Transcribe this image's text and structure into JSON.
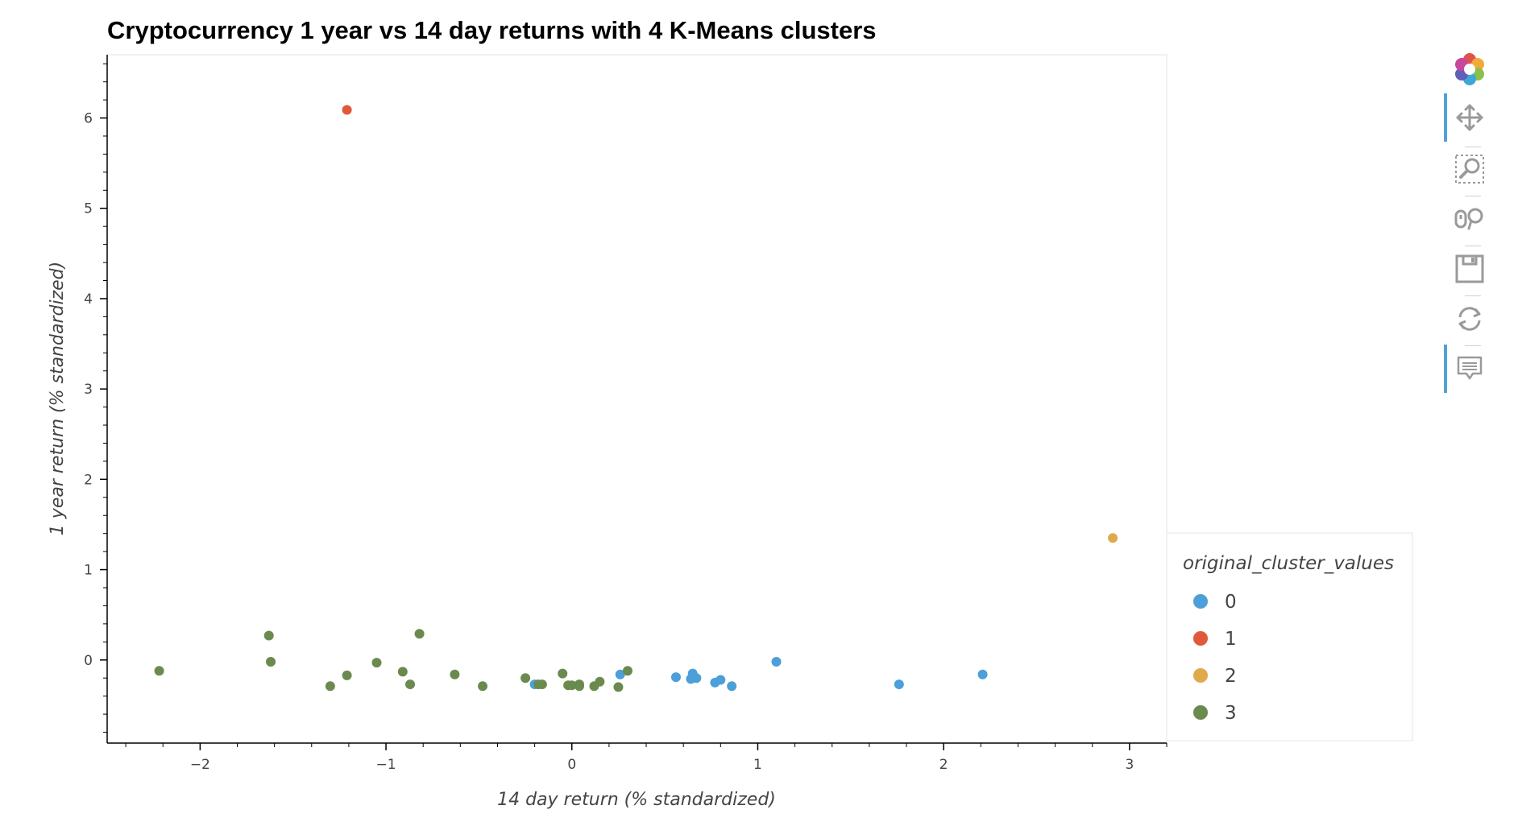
{
  "chart_data": {
    "type": "scatter",
    "title": "Cryptocurrency 1 year vs 14 day returns with 4 K-Means clusters",
    "xlabel": "14 day return (% standardized)",
    "ylabel": "1 year return (% standardized)",
    "xlim": [
      -2.5,
      3.2
    ],
    "ylim": [
      -0.92,
      6.7
    ],
    "x_ticks": [
      -2,
      -1,
      0,
      1,
      2,
      3
    ],
    "x_tick_labels": [
      "−2",
      "−1",
      "0",
      "1",
      "2",
      "3"
    ],
    "y_ticks": [
      0,
      1,
      2,
      3,
      4,
      5,
      6
    ],
    "y_tick_labels": [
      "0",
      "1",
      "2",
      "3",
      "4",
      "5",
      "6"
    ],
    "grid": false,
    "legend": {
      "title": "original_cluster_values",
      "placement": "right"
    },
    "series": [
      {
        "name": "0",
        "color": "#4c9fd8",
        "points": [
          [
            -0.2,
            -0.27
          ],
          [
            0.26,
            -0.16
          ],
          [
            0.56,
            -0.19
          ],
          [
            0.64,
            -0.21
          ],
          [
            0.65,
            -0.15
          ],
          [
            0.67,
            -0.2
          ],
          [
            0.77,
            -0.25
          ],
          [
            0.8,
            -0.22
          ],
          [
            0.86,
            -0.29
          ],
          [
            1.1,
            -0.02
          ],
          [
            1.76,
            -0.27
          ],
          [
            2.21,
            -0.16
          ]
        ]
      },
      {
        "name": "1",
        "color": "#e05a3a",
        "points": [
          [
            -1.21,
            6.09
          ]
        ]
      },
      {
        "name": "2",
        "color": "#e0a94b",
        "points": [
          [
            2.91,
            1.35
          ]
        ]
      },
      {
        "name": "3",
        "color": "#6b8a4e",
        "points": [
          [
            -2.22,
            -0.12
          ],
          [
            -1.63,
            0.27
          ],
          [
            -1.62,
            -0.02
          ],
          [
            -1.3,
            -0.29
          ],
          [
            -1.21,
            -0.17
          ],
          [
            -1.05,
            -0.03
          ],
          [
            -0.91,
            -0.13
          ],
          [
            -0.87,
            -0.27
          ],
          [
            -0.82,
            0.29
          ],
          [
            -0.63,
            -0.16
          ],
          [
            -0.48,
            -0.29
          ],
          [
            -0.25,
            -0.2
          ],
          [
            -0.18,
            -0.27
          ],
          [
            -0.16,
            -0.27
          ],
          [
            -0.05,
            -0.15
          ],
          [
            -0.02,
            -0.28
          ],
          [
            0.0,
            -0.28
          ],
          [
            0.04,
            -0.27
          ],
          [
            0.04,
            -0.29
          ],
          [
            0.12,
            -0.29
          ],
          [
            0.15,
            -0.24
          ],
          [
            0.25,
            -0.3
          ],
          [
            0.3,
            -0.12
          ]
        ]
      }
    ]
  },
  "toolbar": {
    "tools": [
      {
        "icon": "bokeh-logo-icon"
      },
      {
        "icon": "pan-icon"
      },
      {
        "icon": "box-zoom-icon"
      },
      {
        "icon": "wheel-zoom-icon"
      },
      {
        "icon": "save-icon"
      },
      {
        "icon": "reset-icon"
      },
      {
        "icon": "hover-icon"
      }
    ]
  }
}
